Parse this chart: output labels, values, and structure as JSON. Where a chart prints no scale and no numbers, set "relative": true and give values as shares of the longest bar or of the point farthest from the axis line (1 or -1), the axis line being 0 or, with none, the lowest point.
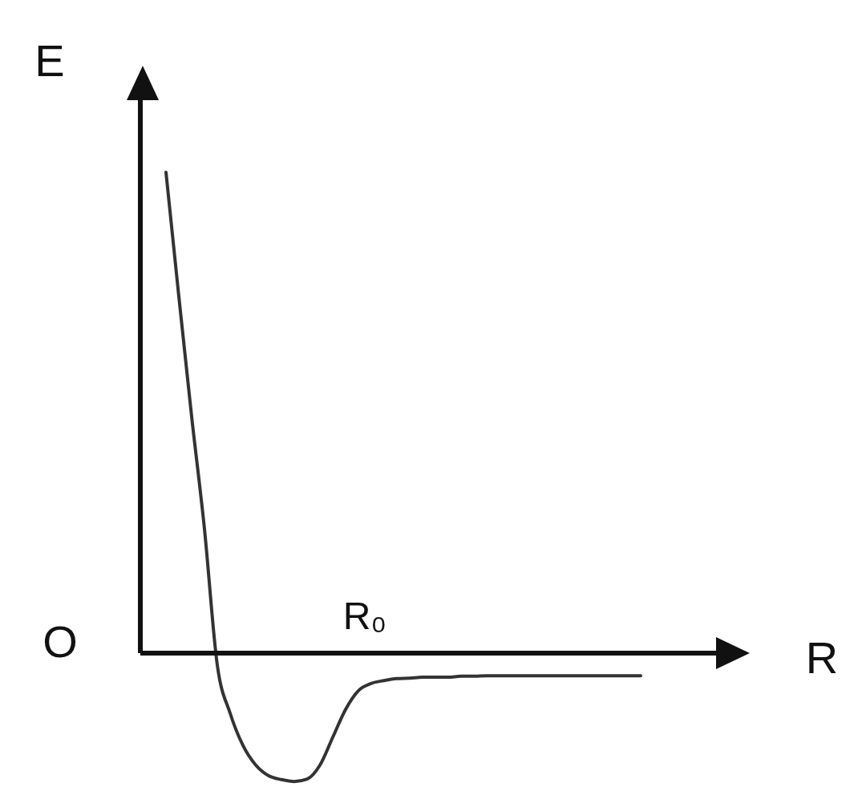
{
  "chart_data": {
    "type": "line",
    "relative": true,
    "xlabel": "R",
    "ylabel": "E",
    "annotations": [
      "O",
      "R₀"
    ],
    "marker": "none",
    "line_style": "solid",
    "grid": false,
    "categories": [
      null,
      null,
      null,
      null,
      null,
      null,
      null,
      null,
      null,
      null,
      null,
      null,
      null,
      null,
      null,
      null,
      null,
      null,
      null,
      null,
      null,
      null,
      null,
      null,
      null,
      null,
      null,
      null,
      null,
      null,
      null,
      null,
      null,
      null,
      null,
      null,
      null,
      null,
      null,
      null,
      null,
      null,
      null,
      null,
      null,
      null,
      null,
      null
    ],
    "series": [
      {
        "color": "#333333",
        "values": [
          null,
          null,
          1.0,
          0.742,
          0.492,
          0.258,
          -0.025,
          -0.125,
          -0.192,
          -0.233,
          -0.255,
          -0.263,
          -0.267,
          -0.262,
          -0.233,
          -0.175,
          -0.117,
          -0.078,
          -0.063,
          -0.057,
          -0.053,
          -0.052,
          -0.05,
          -0.05,
          -0.05,
          -0.048,
          -0.048,
          -0.047,
          -0.047,
          -0.047,
          -0.047,
          -0.047,
          -0.047,
          -0.047,
          -0.047,
          -0.047,
          -0.047,
          -0.047,
          -0.047,
          -0.047,
          null,
          null,
          null,
          null,
          null,
          null,
          null,
          null
        ]
      }
    ]
  }
}
